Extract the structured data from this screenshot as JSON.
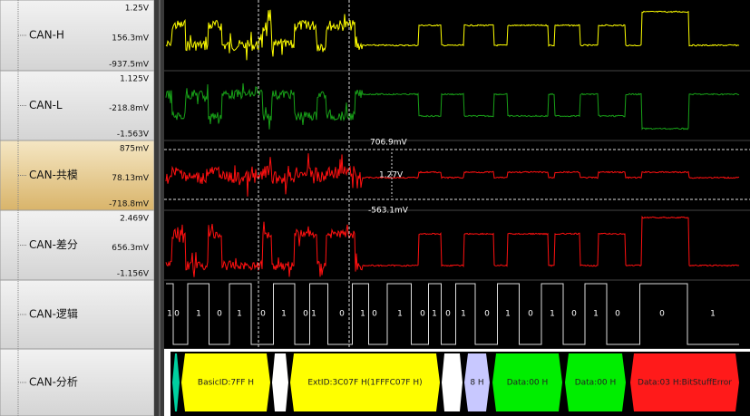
{
  "channels": [
    {
      "name": "CAN-H",
      "scale": [
        "1.25V",
        "156.3mV",
        "-937.5mV"
      ]
    },
    {
      "name": "CAN-L",
      "scale": [
        "1.125V",
        "-218.8mV",
        "-1.563V"
      ]
    },
    {
      "name": "CAN-共模",
      "scale": [
        "875mV",
        "78.13mV",
        "-718.8mV"
      ]
    },
    {
      "name": "CAN-差分",
      "scale": [
        "2.469V",
        "656.3mV",
        "-1.156V"
      ]
    },
    {
      "name": "CAN-逻辑"
    },
    {
      "name": "CAN-分析"
    }
  ],
  "cursors": {
    "upper": "706.9mV",
    "delta": "1.27V",
    "lower": "-563.1mV"
  },
  "logic_bits": [
    "1",
    "0",
    "1",
    "0",
    "1",
    "0",
    "1",
    "0",
    "1",
    "0",
    "1",
    "0",
    "1",
    "0",
    "1",
    "0",
    "1",
    "0",
    "1",
    "0",
    "1",
    "0",
    "1",
    "0",
    "0",
    "1"
  ],
  "decode": [
    "BasicID:7FF H",
    "ExtID:3C07F H(1FFFC07F H)",
    "8 H",
    "Data:00 H",
    "Data:00 H",
    "Data:03 H:BitStuffError"
  ]
}
